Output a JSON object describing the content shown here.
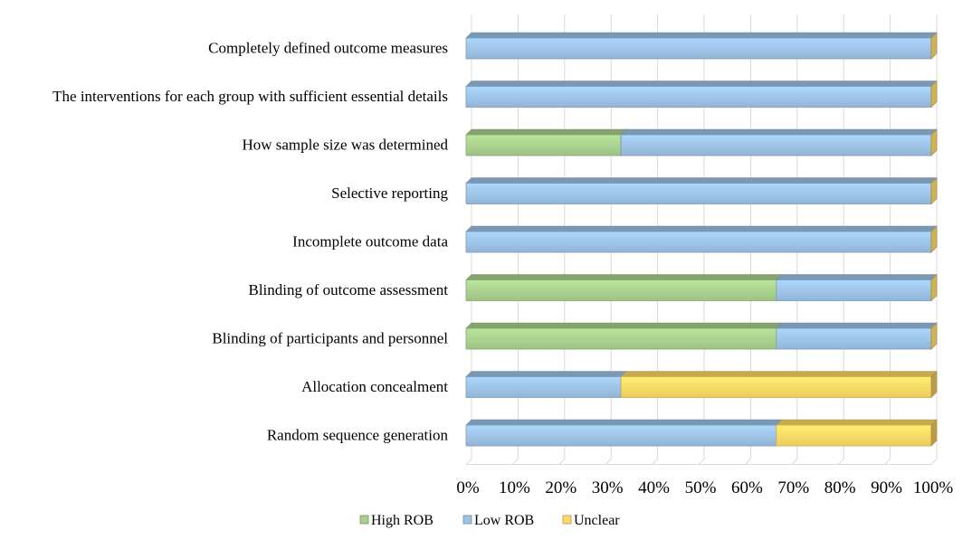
{
  "chart_data": {
    "type": "bar",
    "orientation": "horizontal",
    "stacked": "percent",
    "categories": [
      "Completely defined outcome measures",
      "The interventions for each group with sufficient essential details",
      "How sample size was determined",
      "Selective reporting",
      "Incomplete outcome data",
      "Blinding of outcome assessment",
      "Blinding of participants and personnel",
      "Allocation concealment",
      "Random sequence generation"
    ],
    "series": [
      {
        "name": "High ROB",
        "color": "#a9d18e",
        "values": [
          0,
          0,
          33.3,
          0,
          0,
          66.7,
          66.7,
          0,
          0
        ]
      },
      {
        "name": "Low ROB",
        "color": "#9dc3e6",
        "values": [
          100,
          100,
          66.7,
          100,
          100,
          33.3,
          33.3,
          33.3,
          66.7
        ]
      },
      {
        "name": "Unclear",
        "color": "#ffd966",
        "values": [
          0,
          0,
          0,
          0,
          0,
          0,
          0,
          66.7,
          33.3
        ]
      }
    ],
    "xlim": [
      0,
      100
    ],
    "x_ticks": [
      "0%",
      "10%",
      "20%",
      "30%",
      "40%",
      "50%",
      "60%",
      "70%",
      "80%",
      "90%",
      "100%"
    ],
    "title": "",
    "xlabel": "",
    "ylabel": "",
    "grid": true,
    "legend_position": "bottom"
  }
}
